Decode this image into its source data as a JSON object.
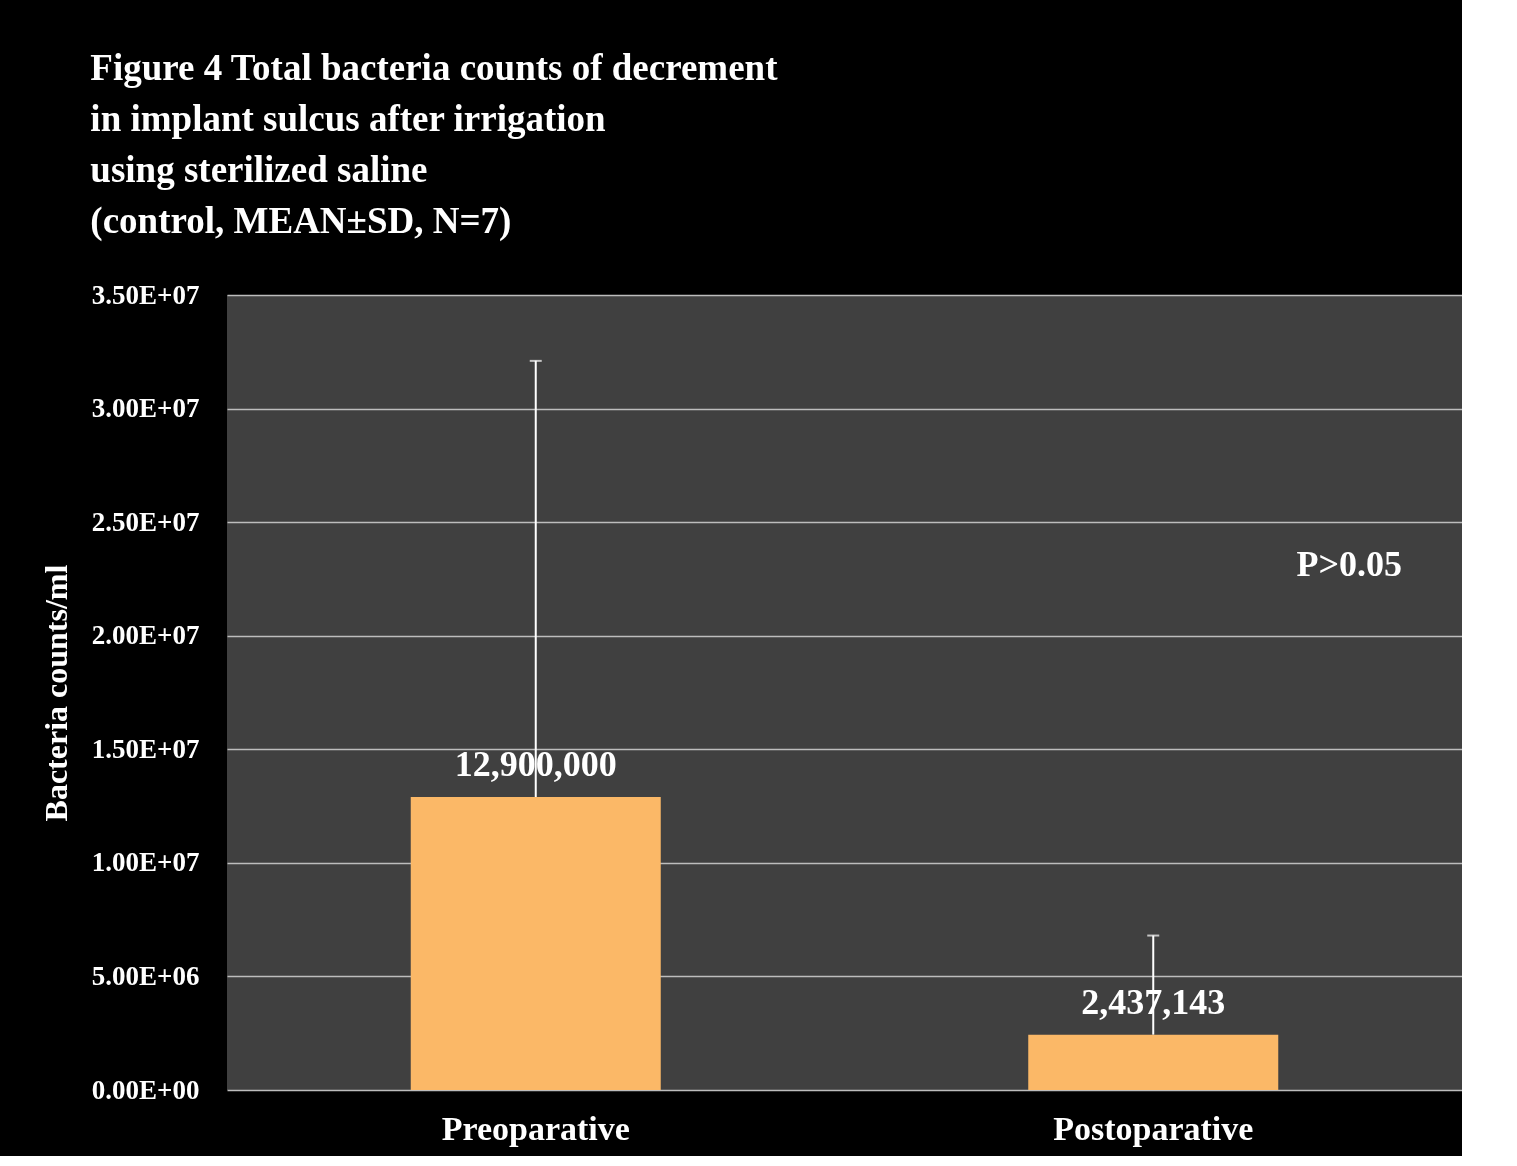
{
  "chart_data": {
    "type": "bar",
    "title": [
      "Figure 4    Total bacteria counts of decrement",
      "in implant sulcus after irrigation",
      "using sterilized saline",
      " (control, MEAN±SD,  N=7)"
    ],
    "ylabel": "Bacteria counts/ml",
    "categories": [
      "Preoparative",
      "Postoparative"
    ],
    "values": [
      12900000,
      2437143
    ],
    "value_labels": [
      "12,900,000",
      "2,437,143"
    ],
    "errors": [
      [
        12900000,
        32100000
      ],
      [
        2437143,
        6800000
      ]
    ],
    "color": "#fbb867",
    "ylim": [
      0,
      35000000
    ],
    "yticks": [
      {
        "value": 0,
        "label": "0.00E+00"
      },
      {
        "value": 5000000,
        "label": "5.00E+06"
      },
      {
        "value": 10000000,
        "label": "1.00E+07"
      },
      {
        "value": 15000000,
        "label": "1.50E+07"
      },
      {
        "value": 20000000,
        "label": "2.00E+07"
      },
      {
        "value": 25000000,
        "label": "2.50E+07"
      },
      {
        "value": 30000000,
        "label": "3.00E+07"
      },
      {
        "value": 35000000,
        "label": "3.50E+07"
      }
    ],
    "grid": "y",
    "annotations": [
      "P>0.05"
    ]
  }
}
